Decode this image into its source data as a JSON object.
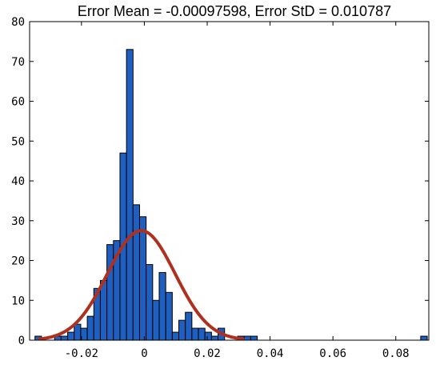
{
  "chart_data": {
    "type": "bar",
    "title": "Error Mean = -0.00097598, Error StD = 0.010787",
    "xlabel": "",
    "ylabel": "",
    "xlim": [
      -0.0365,
      0.0905
    ],
    "ylim": [
      0,
      80
    ],
    "x_ticks": [
      -0.02,
      0,
      0.02,
      0.04,
      0.06,
      0.08
    ],
    "x_tick_labels": [
      "-0.02",
      "0",
      "0.02",
      "0.04",
      "0.06",
      "0.08"
    ],
    "y_ticks": [
      0,
      10,
      20,
      30,
      40,
      50,
      60,
      70,
      80
    ],
    "y_tick_labels": [
      "0",
      "10",
      "20",
      "30",
      "40",
      "50",
      "60",
      "70",
      "80"
    ],
    "grid": false,
    "series": [
      {
        "kind": "histogram",
        "bin_width": 0.00208,
        "bin_centers": [
          -0.03375,
          -0.03167,
          -0.02959,
          -0.02751,
          -0.02543,
          -0.02335,
          -0.02127,
          -0.01919,
          -0.01711,
          -0.01503,
          -0.01295,
          -0.01087,
          -0.00879,
          -0.00671,
          -0.00463,
          -0.00255,
          -0.00047,
          0.00161,
          0.00369,
          0.00577,
          0.00785,
          0.00993,
          0.01201,
          0.01409,
          0.01617,
          0.01825,
          0.02033,
          0.02241,
          0.02449,
          0.02657,
          0.02865,
          0.03073,
          0.03281,
          0.03489,
          0.03697,
          0.03905,
          0.08897
        ],
        "counts": [
          1,
          0,
          0,
          1,
          1,
          2,
          4,
          3,
          6,
          13,
          15,
          24,
          25,
          47,
          73,
          34,
          31,
          19,
          10,
          17,
          12,
          2,
          5,
          7,
          3,
          3,
          2,
          1,
          3,
          0,
          0,
          1,
          1,
          1,
          0,
          0,
          1
        ]
      },
      {
        "kind": "normal_fit",
        "mean": -0.00097598,
        "std": 0.010787,
        "peak": 27.5
      }
    ],
    "colors": {
      "bar_fill": "#1f5fc0",
      "bar_edge": "#000000",
      "fit_line": "#b03020",
      "axes": "#000000",
      "background": "#ffffff"
    }
  }
}
